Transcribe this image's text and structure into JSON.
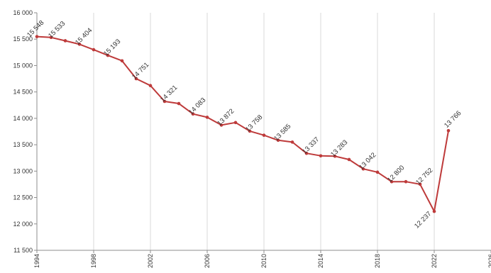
{
  "chart_data": {
    "type": "line",
    "title": "",
    "xlabel": "",
    "ylabel": "",
    "grid": "vertical",
    "legend": "none",
    "xlim": [
      1994,
      2026
    ],
    "ylim": [
      11500,
      16000
    ],
    "y_ticks": [
      11500,
      12000,
      12500,
      13000,
      13500,
      14000,
      14500,
      15000,
      15500,
      16000
    ],
    "y_tick_labels": [
      "11 500",
      "12 000",
      "12 500",
      "13 000",
      "13 500",
      "14 000",
      "14 500",
      "15 000",
      "15 500",
      "16 000"
    ],
    "x_ticks": [
      1994,
      1998,
      2002,
      2006,
      2010,
      2014,
      2018,
      2022,
      2026
    ],
    "x_tick_labels": [
      "1994",
      "1998",
      "2002",
      "2006",
      "2010",
      "2014",
      "2018",
      "2022",
      "2026"
    ],
    "series": [
      {
        "color": "#be3a3a",
        "x": [
          1994,
          1995,
          1996,
          1997,
          1998,
          1999,
          2000,
          2001,
          2002,
          2003,
          2004,
          2005,
          2006,
          2007,
          2008,
          2009,
          2010,
          2011,
          2012,
          2013,
          2014,
          2015,
          2016,
          2017,
          2018,
          2019,
          2020,
          2021,
          2022,
          2023
        ],
        "values": [
          15548,
          15533,
          15470,
          15404,
          15300,
          15193,
          15090,
          14751,
          14620,
          14321,
          14280,
          14083,
          14020,
          13872,
          13920,
          13758,
          13680,
          13585,
          13550,
          13337,
          13290,
          13283,
          13220,
          13042,
          12980,
          12800,
          12800,
          12752,
          12237,
          13766
        ]
      }
    ],
    "data_labels": [
      {
        "x": 1994,
        "y": 15548,
        "text": "15 548",
        "dx": 0,
        "dy": -9
      },
      {
        "x": 1995,
        "y": 15533,
        "text": "15 533",
        "dx": 10,
        "dy": -9
      },
      {
        "x": 1997,
        "y": 15404,
        "text": "15 404",
        "dx": 8,
        "dy": -9
      },
      {
        "x": 1999,
        "y": 15193,
        "text": "15 193",
        "dx": 8,
        "dy": -9
      },
      {
        "x": 2001,
        "y": 14751,
        "text": "14 751",
        "dx": 8,
        "dy": -9
      },
      {
        "x": 2003,
        "y": 14321,
        "text": "14 321",
        "dx": 8,
        "dy": -9
      },
      {
        "x": 2005,
        "y": 14083,
        "text": "14 083",
        "dx": 8,
        "dy": -9
      },
      {
        "x": 2007,
        "y": 13872,
        "text": "13 872",
        "dx": 8,
        "dy": -9
      },
      {
        "x": 2009,
        "y": 13758,
        "text": "13 758",
        "dx": 8,
        "dy": -9
      },
      {
        "x": 2011,
        "y": 13585,
        "text": "13 585",
        "dx": 8,
        "dy": -9
      },
      {
        "x": 2013,
        "y": 13337,
        "text": "13 337",
        "dx": 8,
        "dy": -9
      },
      {
        "x": 2015,
        "y": 13283,
        "text": "13 283",
        "dx": 8,
        "dy": -9
      },
      {
        "x": 2017,
        "y": 13042,
        "text": "13 042",
        "dx": 8,
        "dy": -9
      },
      {
        "x": 2019,
        "y": 12800,
        "text": "12 800",
        "dx": 8,
        "dy": -9
      },
      {
        "x": 2021,
        "y": 12752,
        "text": "12 752",
        "dx": 8,
        "dy": -9
      },
      {
        "x": 2022,
        "y": 12237,
        "text": "12 237",
        "dx": -14,
        "dy": 14
      },
      {
        "x": 2023,
        "y": 13766,
        "text": "13 766",
        "dx": 8,
        "dy": -14
      }
    ]
  }
}
